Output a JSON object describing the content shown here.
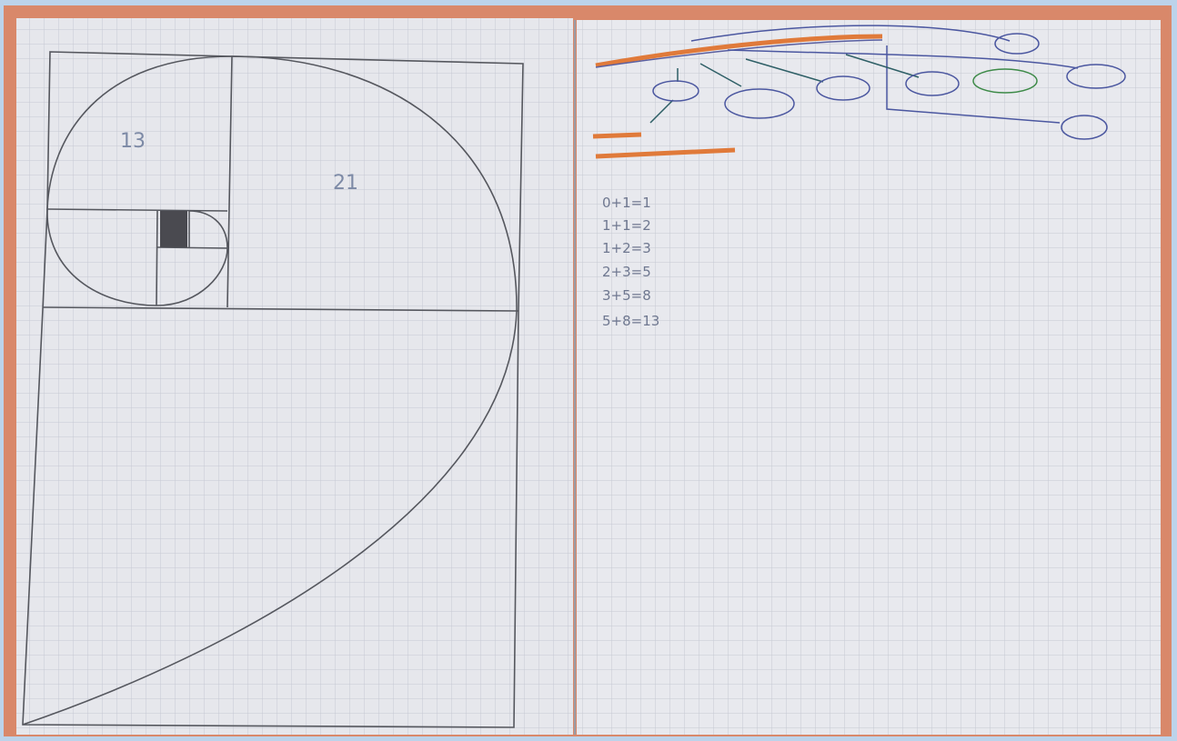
{
  "drawing": {
    "labels": [
      "13",
      "21"
    ]
  },
  "notes": {
    "equations": [
      "0+1=1",
      "1+1=2",
      "1+2=3",
      "2+3=5",
      "3+5=8",
      "5+8=13"
    ]
  }
}
